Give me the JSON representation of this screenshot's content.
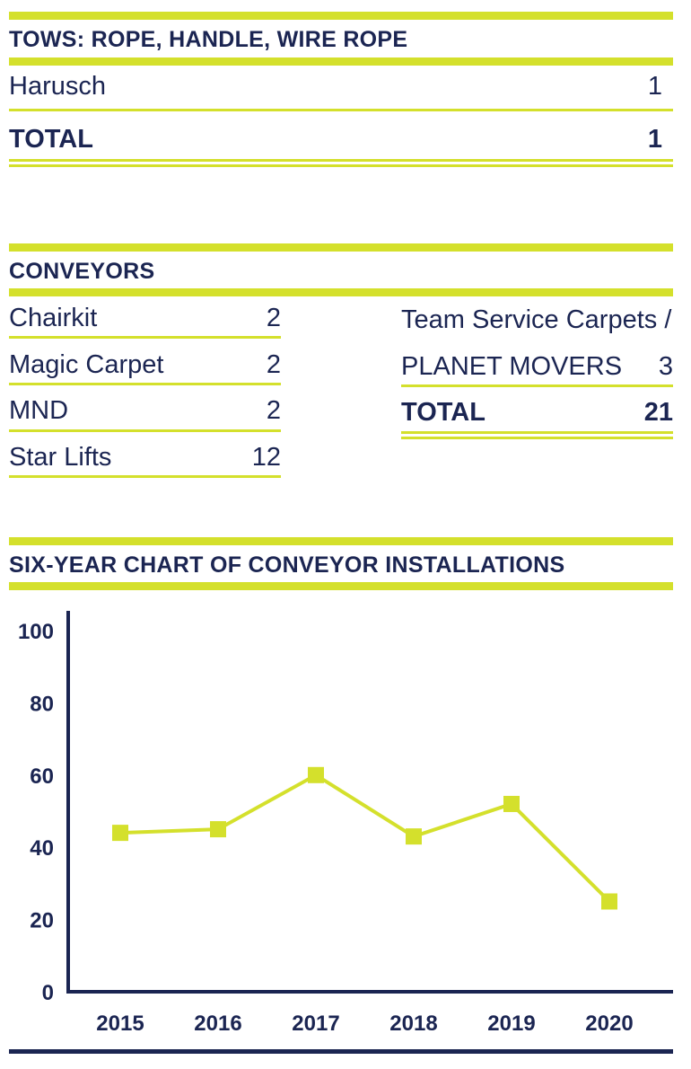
{
  "colors": {
    "navy": "#1b2552",
    "lime": "#d4e02c"
  },
  "tows": {
    "heading": "TOWS: ROPE, HANDLE, WIRE ROPE",
    "rows": [
      {
        "label": "Harusch",
        "value": "1"
      }
    ],
    "total": {
      "label": "TOTAL",
      "value": "1"
    }
  },
  "conveyors": {
    "heading": "CONVEYORS",
    "left_rows": [
      {
        "label": "Chairkit",
        "value": "2"
      },
      {
        "label": "Magic Carpet",
        "value": "2"
      },
      {
        "label": "MND",
        "value": "2"
      },
      {
        "label": "Star Lifts",
        "value": "12"
      }
    ],
    "right_line1": "Team Service Carpets /",
    "right_row": {
      "label": "PLANET MOVERS",
      "value": "3"
    },
    "total": {
      "label": "TOTAL",
      "value": "21"
    }
  },
  "chart_heading": "SIX-YEAR CHART OF CONVEYOR INSTALLATIONS",
  "chart_data": {
    "type": "line",
    "title": "SIX-YEAR CHART OF CONVEYOR INSTALLATIONS",
    "categories": [
      "2015",
      "2016",
      "2017",
      "2018",
      "2019",
      "2020"
    ],
    "series": [
      {
        "values": [
          44,
          45,
          60,
          43,
          52,
          25
        ]
      }
    ],
    "ylim": [
      0,
      100
    ],
    "yticks": [
      0,
      20,
      40,
      60,
      80,
      100
    ],
    "xlabel": "",
    "ylabel": "",
    "grid": false,
    "marker": "square"
  }
}
